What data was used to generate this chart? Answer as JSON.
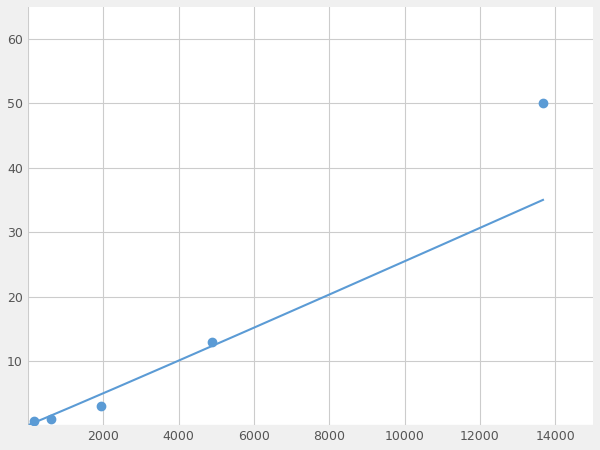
{
  "x": [
    156,
    625,
    1953,
    4883,
    13671
  ],
  "y": [
    0.6,
    1.0,
    3.0,
    13.0,
    50.0
  ],
  "line_color": "#5b9bd5",
  "marker_color": "#5b9bd5",
  "marker_size": 6,
  "linewidth": 1.5,
  "xlim": [
    0,
    15000
  ],
  "ylim": [
    0,
    65
  ],
  "xticks": [
    0,
    2000,
    4000,
    6000,
    8000,
    10000,
    12000,
    14000
  ],
  "yticks": [
    0,
    10,
    20,
    30,
    40,
    50,
    60
  ],
  "grid_color": "#cccccc",
  "background_color": "#ffffff",
  "figure_bg": "#f0f0f0"
}
